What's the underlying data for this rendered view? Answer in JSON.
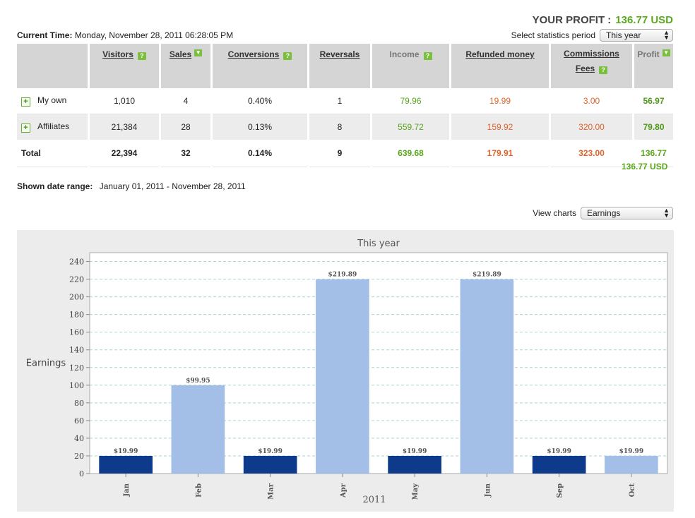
{
  "header": {
    "profit_label": "YOUR PROFIT :",
    "profit_value": "136.77 USD"
  },
  "current_time": {
    "label": "Current Time:",
    "value": "Monday, November 28, 2011 06:28:05 PM"
  },
  "period": {
    "label": "Select statistics period",
    "selected": "This year"
  },
  "table": {
    "headers": {
      "visitors": "Visitors",
      "sales": "Sales",
      "conversions": "Conversions",
      "reversals": "Reversals",
      "income": "Income",
      "refunded": "Refunded money",
      "commissions_line1": "Commissions",
      "commissions_line2": "Fees",
      "profit": "Profit"
    },
    "rows": [
      {
        "name": "My own",
        "visitors": "1,010",
        "sales": "4",
        "conversions": "0.40%",
        "reversals": "1",
        "income": "79.96",
        "refunded": "19.99",
        "commissions": "3.00",
        "profit": "56.97"
      },
      {
        "name": "Affiliates",
        "visitors": "21,384",
        "sales": "28",
        "conversions": "0.13%",
        "reversals": "8",
        "income": "559.72",
        "refunded": "159.92",
        "commissions": "320.00",
        "profit": "79.80"
      },
      {
        "name": "Total",
        "visitors": "22,394",
        "sales": "32",
        "conversions": "0.14%",
        "reversals": "9",
        "income": "639.68",
        "refunded": "179.91",
        "commissions": "323.00",
        "profit": "136.77"
      }
    ],
    "total_usd": "136.77 USD"
  },
  "date_range": {
    "label": "Shown date range:",
    "value": "January 01, 2011 - November 28, 2011"
  },
  "view_charts": {
    "label": "View charts",
    "selected": "Earnings"
  },
  "colors": {
    "accent_green": "#58a81a",
    "orange": "#e0622a",
    "bar_dark": "#0e3a8c",
    "bar_light": "#a3bfe8"
  },
  "chart_data": {
    "type": "bar",
    "title": "This year",
    "xlabel": "2011",
    "ylabel": "Earnings",
    "categories": [
      "Jan",
      "Feb",
      "Mar",
      "Apr",
      "May",
      "Jun",
      "Sep",
      "Oct"
    ],
    "values": [
      19.99,
      99.95,
      19.99,
      219.89,
      19.99,
      219.89,
      19.99,
      19.99
    ],
    "labels": [
      "$19.99",
      "$99.95",
      "$19.99",
      "$219.89",
      "$19.99",
      "$219.89",
      "$19.99",
      "$19.99"
    ],
    "bar_colors": [
      "#0e3a8c",
      "#a3bfe8",
      "#0e3a8c",
      "#a3bfe8",
      "#0e3a8c",
      "#a3bfe8",
      "#0e3a8c",
      "#a3bfe8"
    ],
    "ylim": [
      0,
      250
    ],
    "yticks": [
      0,
      20,
      40,
      60,
      80,
      100,
      120,
      140,
      160,
      180,
      200,
      220,
      240
    ],
    "grid": true
  }
}
